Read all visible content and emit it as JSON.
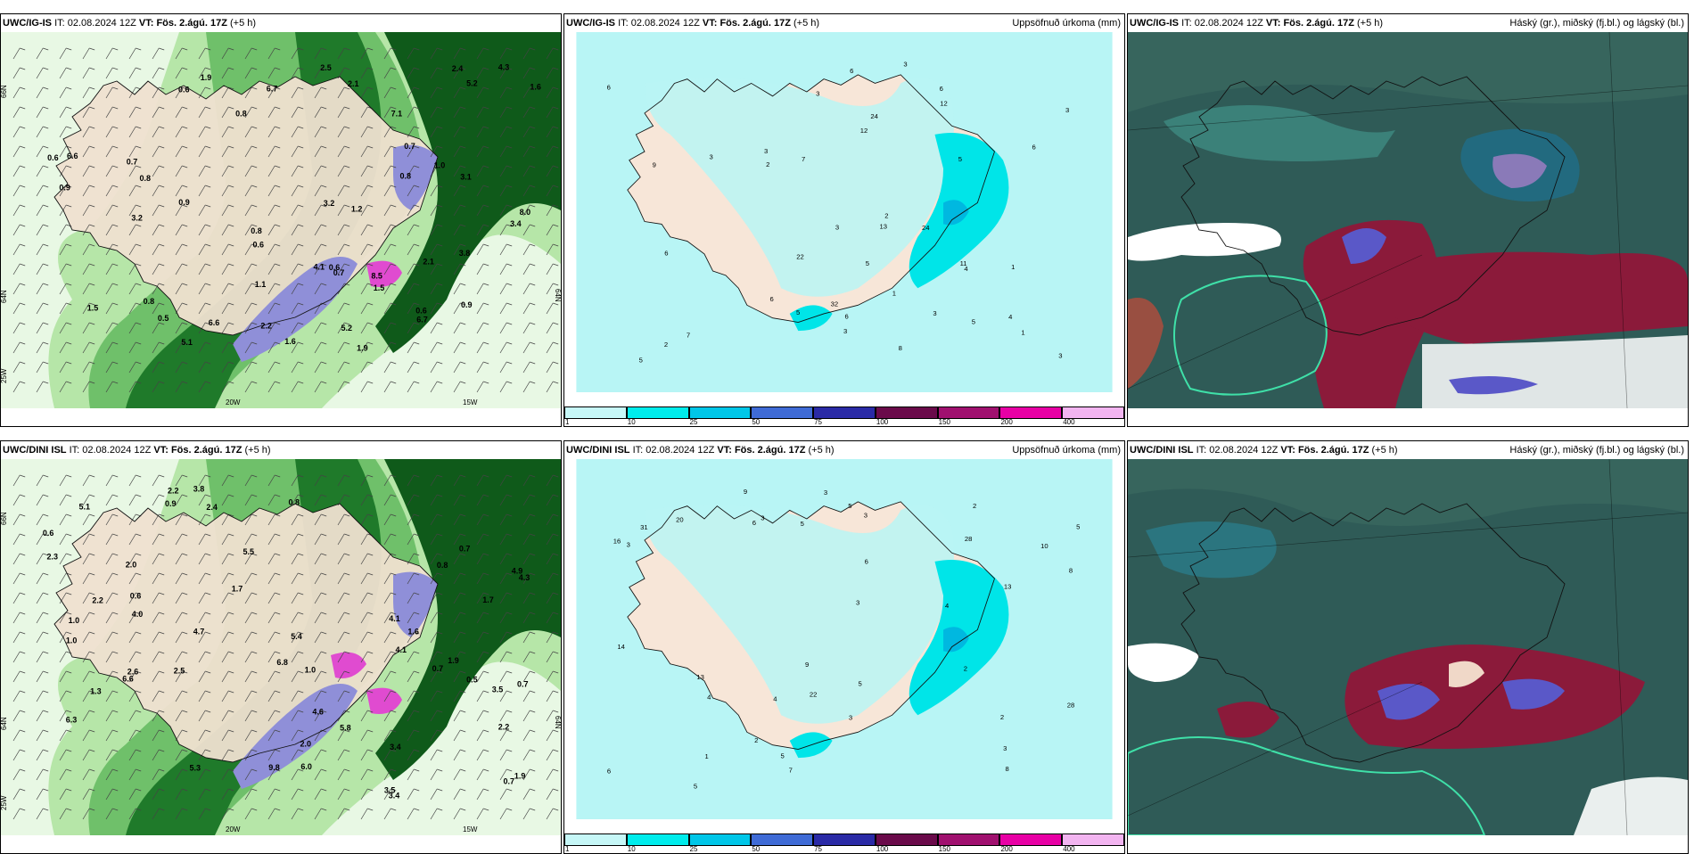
{
  "rows": [
    {
      "model": "UWC/IG-IS",
      "it_label": "IT:",
      "it_value": "02.08.2024 12Z",
      "vt_label": "VT:",
      "vt_value": "Fös. 2.ágú. 17Z",
      "lead": "(+5 h)",
      "map1_labels": {
        "lat_top": "66N",
        "lat_mid": "64N",
        "lat_right": "64N",
        "lon_a": "25W",
        "lon_b": "20W",
        "lon_c": "15W"
      },
      "map1_values": [
        "1.9",
        "0.6",
        "0.8",
        "0.7",
        "1.0",
        "5.2",
        "3.4",
        "0.9",
        "0.6",
        "0.5",
        "1.5",
        "0.6",
        "0.8",
        "0.6",
        "0.8",
        "2.4",
        "0.9",
        "5.2",
        "2.1",
        "3.1",
        "0.6",
        "0.7",
        "5.1",
        "6.7",
        "1.2",
        "0.7",
        "3.2",
        "0.8",
        "1.6",
        "0.8",
        "1.5",
        "4.3",
        "7.1",
        "6.6",
        "1.9",
        "2.2",
        "2.5",
        "6.6",
        "8.0",
        "8.5",
        "6.7",
        "3.2",
        "1.6",
        "0.9",
        "2.1",
        "3.8",
        "4.1",
        "1.1"
      ],
      "map2_values": [
        "2",
        "1",
        "2",
        "5",
        "3",
        "3",
        "4",
        "6",
        "5",
        "6",
        "3",
        "2",
        "5",
        "6",
        "3",
        "3",
        "11",
        "6",
        "3",
        "3",
        "6",
        "7",
        "3",
        "24",
        "4",
        "12",
        "7",
        "12",
        "6",
        "1",
        "1",
        "22",
        "24",
        "5",
        "13",
        "8",
        "6",
        "5",
        "9",
        "32",
        "3"
      ]
    },
    {
      "model": "UWC/DINI ISL",
      "it_label": "IT:",
      "it_value": "02.08.2024 12Z",
      "vt_label": "VT:",
      "vt_value": "Fös. 2.ágú. 17Z",
      "lead": "(+5 h)",
      "map1_labels": {
        "lat_top": "66N",
        "lat_mid": "64N",
        "lat_right": "64N",
        "lon_a": "25W",
        "lon_b": "20W",
        "lon_c": "15W"
      },
      "map1_values": [
        "2.2",
        "0.5",
        "0.7",
        "1.7",
        "5.5",
        "3.5",
        "4.3",
        "2.6",
        "1.0",
        "9.8",
        "0.8",
        "4.1",
        "1.6",
        "3.4",
        "2.0",
        "2.2",
        "1.3",
        "2.4",
        "0.7",
        "1.0",
        "6.8",
        "5.4",
        "3.5",
        "2.5",
        "0.6",
        "0.7",
        "1.0",
        "5.3",
        "4.6",
        "6.6",
        "4.0",
        "2.3",
        "4.9",
        "2.0",
        "4.1",
        "3.4",
        "5.8",
        "1.9",
        "0.7",
        "0.8",
        "6.3",
        "6.0",
        "5.1",
        "1.7",
        "0.9",
        "1.9",
        "2.2",
        "4.7",
        "3.8",
        "0.6"
      ],
      "map2_values": [
        "3",
        "2",
        "2",
        "5",
        "3",
        "3",
        "4",
        "13",
        "5",
        "4",
        "5",
        "8",
        "3",
        "6",
        "3",
        "6",
        "4",
        "10",
        "16",
        "8",
        "5",
        "13",
        "31",
        "14",
        "9",
        "22",
        "28",
        "2",
        "1",
        "6",
        "3",
        "2",
        "20",
        "28",
        "9",
        "5",
        "7",
        "3",
        "5"
      ]
    }
  ],
  "map2_title": "Uppsöfnuð úrkoma (mm)",
  "map3_title": "Háský (gr.), miðský (fj.bl.) og lágský (bl.)",
  "legend": {
    "labels": [
      "1",
      "10",
      "25",
      "50",
      "75",
      "100",
      "150",
      "200",
      "400"
    ],
    "colors": [
      "#c6f7f7",
      "#00ecec",
      "#00c6e8",
      "#3f6bd6",
      "#2a2aa6",
      "#6a0a4a",
      "#a0106f",
      "#e800a5",
      "#f2b4f0"
    ]
  }
}
